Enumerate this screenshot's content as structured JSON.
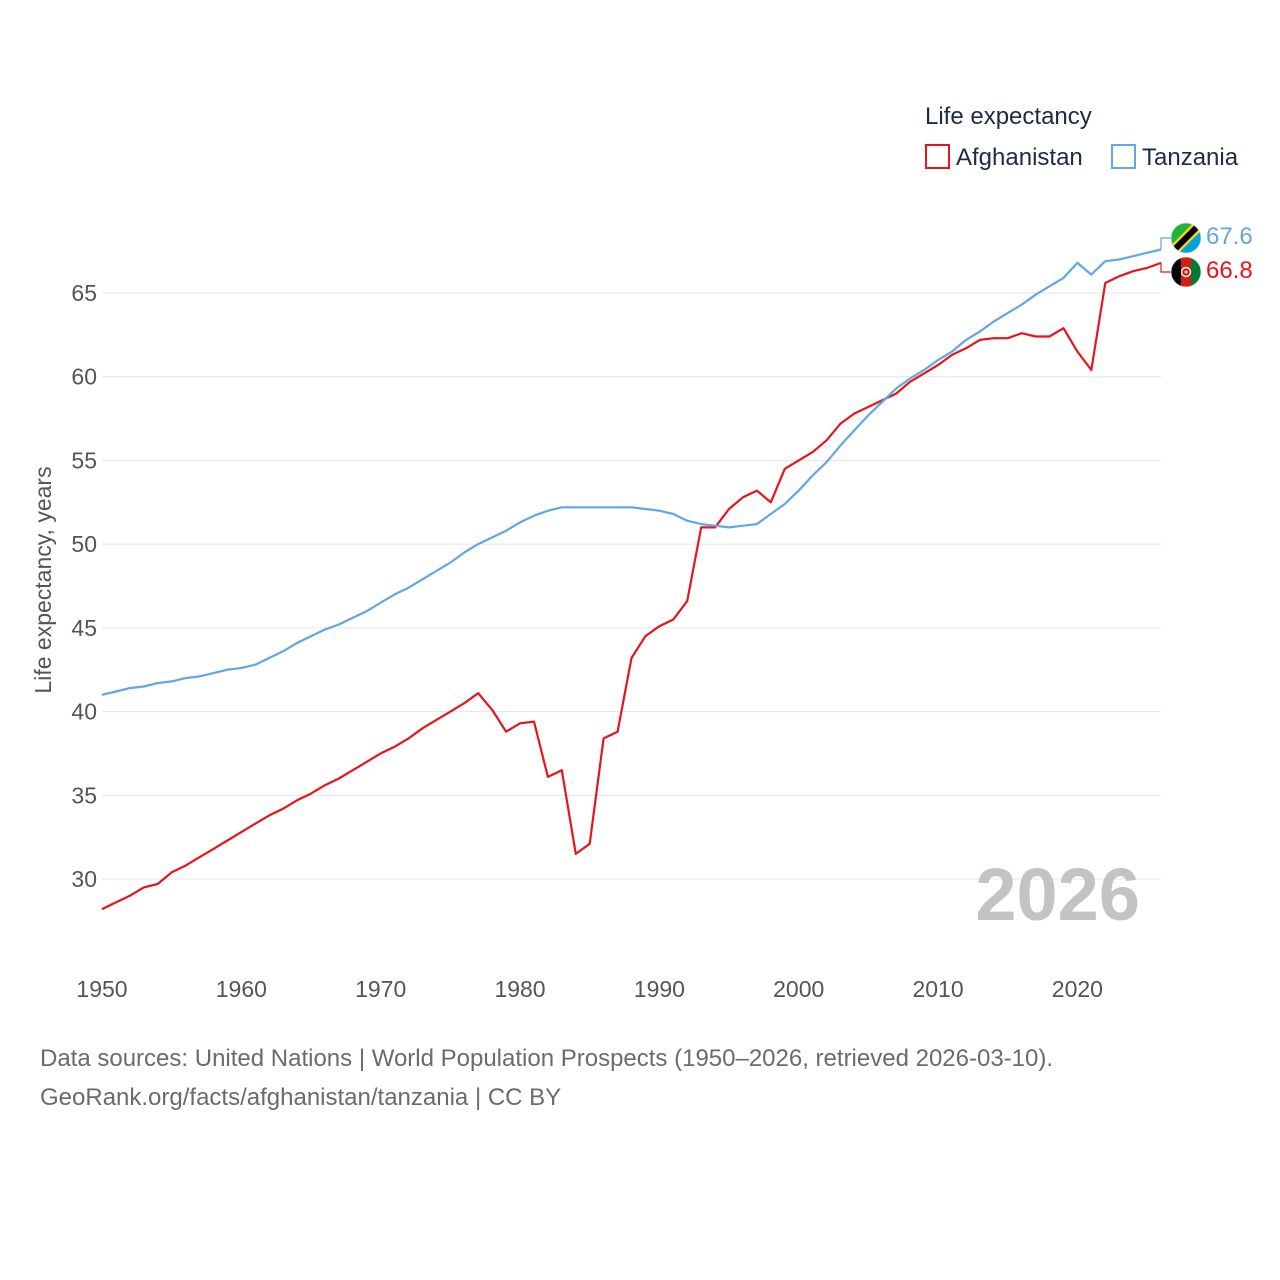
{
  "chart_data": {
    "type": "line",
    "legend_title": "Life expectancy",
    "ylabel": "Life expectancy, years",
    "year_display": "2026",
    "xlim": [
      1950,
      2026
    ],
    "ylim": [
      27,
      69
    ],
    "xticks": [
      1950,
      1960,
      1970,
      1980,
      1990,
      2000,
      2010,
      2020
    ],
    "yticks": [
      30,
      35,
      40,
      45,
      50,
      55,
      60,
      65
    ],
    "series": [
      {
        "name": "Afghanistan",
        "color": "#e8141c",
        "end_label": "66.8",
        "flag_icon": "afghanistan-flag-icon",
        "years": [
          1950,
          1951,
          1952,
          1953,
          1954,
          1955,
          1956,
          1957,
          1958,
          1959,
          1960,
          1961,
          1962,
          1963,
          1964,
          1965,
          1966,
          1967,
          1968,
          1969,
          1970,
          1971,
          1972,
          1973,
          1974,
          1975,
          1976,
          1977,
          1978,
          1979,
          1980,
          1981,
          1982,
          1983,
          1984,
          1985,
          1986,
          1987,
          1988,
          1989,
          1990,
          1991,
          1992,
          1993,
          1994,
          1995,
          1996,
          1997,
          1998,
          1999,
          2000,
          2001,
          2002,
          2003,
          2004,
          2005,
          2006,
          2007,
          2008,
          2009,
          2010,
          2011,
          2012,
          2013,
          2014,
          2015,
          2016,
          2017,
          2018,
          2019,
          2020,
          2021,
          2022,
          2023,
          2024,
          2025,
          2026
        ],
        "values": [
          28.2,
          28.6,
          29.0,
          29.5,
          29.7,
          30.4,
          30.8,
          31.3,
          31.8,
          32.3,
          32.8,
          33.3,
          33.8,
          34.2,
          34.7,
          35.1,
          35.6,
          36.0,
          36.5,
          37.0,
          37.5,
          37.9,
          38.4,
          39.0,
          39.5,
          40.0,
          40.5,
          41.1,
          40.1,
          38.8,
          39.3,
          39.4,
          36.1,
          36.5,
          31.5,
          32.1,
          38.4,
          38.8,
          43.2,
          44.5,
          45.1,
          45.5,
          46.6,
          51.0,
          51.0,
          52.1,
          52.8,
          53.2,
          52.5,
          54.5,
          55.0,
          55.5,
          56.2,
          57.2,
          57.8,
          58.2,
          58.6,
          59.0,
          59.7,
          60.2,
          60.7,
          61.3,
          61.7,
          62.2,
          62.3,
          62.3,
          62.6,
          62.4,
          62.4,
          62.9,
          61.5,
          60.4,
          65.6,
          66.0,
          66.3,
          66.5,
          66.8
        ]
      },
      {
        "name": "Tanzania",
        "color": "#62a6e3",
        "end_label": "67.6",
        "flag_icon": "tanzania-flag-icon",
        "years": [
          1950,
          1951,
          1952,
          1953,
          1954,
          1955,
          1956,
          1957,
          1958,
          1959,
          1960,
          1961,
          1962,
          1963,
          1964,
          1965,
          1966,
          1967,
          1968,
          1969,
          1970,
          1971,
          1972,
          1973,
          1974,
          1975,
          1976,
          1977,
          1978,
          1979,
          1980,
          1981,
          1982,
          1983,
          1984,
          1985,
          1986,
          1987,
          1988,
          1989,
          1990,
          1991,
          1992,
          1993,
          1994,
          1995,
          1996,
          1997,
          1998,
          1999,
          2000,
          2001,
          2002,
          2003,
          2004,
          2005,
          2006,
          2007,
          2008,
          2009,
          2010,
          2011,
          2012,
          2013,
          2014,
          2015,
          2016,
          2017,
          2018,
          2019,
          2020,
          2021,
          2022,
          2023,
          2024,
          2025,
          2026
        ],
        "values": [
          41.0,
          41.2,
          41.4,
          41.5,
          41.7,
          41.8,
          42.0,
          42.1,
          42.3,
          42.5,
          42.6,
          42.8,
          43.2,
          43.6,
          44.1,
          44.5,
          44.9,
          45.2,
          45.6,
          46.0,
          46.5,
          47.0,
          47.4,
          47.9,
          48.4,
          48.9,
          49.5,
          50.0,
          50.4,
          50.8,
          51.3,
          51.7,
          52.0,
          52.2,
          52.2,
          52.2,
          52.2,
          52.2,
          52.2,
          52.1,
          52.0,
          51.8,
          51.4,
          51.2,
          51.1,
          51.0,
          51.1,
          51.2,
          51.8,
          52.4,
          53.2,
          54.1,
          54.9,
          55.9,
          56.8,
          57.7,
          58.5,
          59.3,
          59.9,
          60.4,
          61.0,
          61.5,
          62.2,
          62.7,
          63.3,
          63.8,
          64.3,
          64.9,
          65.4,
          65.9,
          66.8,
          66.1,
          66.9,
          67.0,
          67.2,
          67.4,
          67.6
        ]
      }
    ]
  },
  "footer": {
    "line1": "Data sources: United Nations | World Population Prospects (1950–2026, retrieved 2026-03-10).",
    "line2": "GeoRank.org/facts/afghanistan/tanzania | CC BY"
  }
}
